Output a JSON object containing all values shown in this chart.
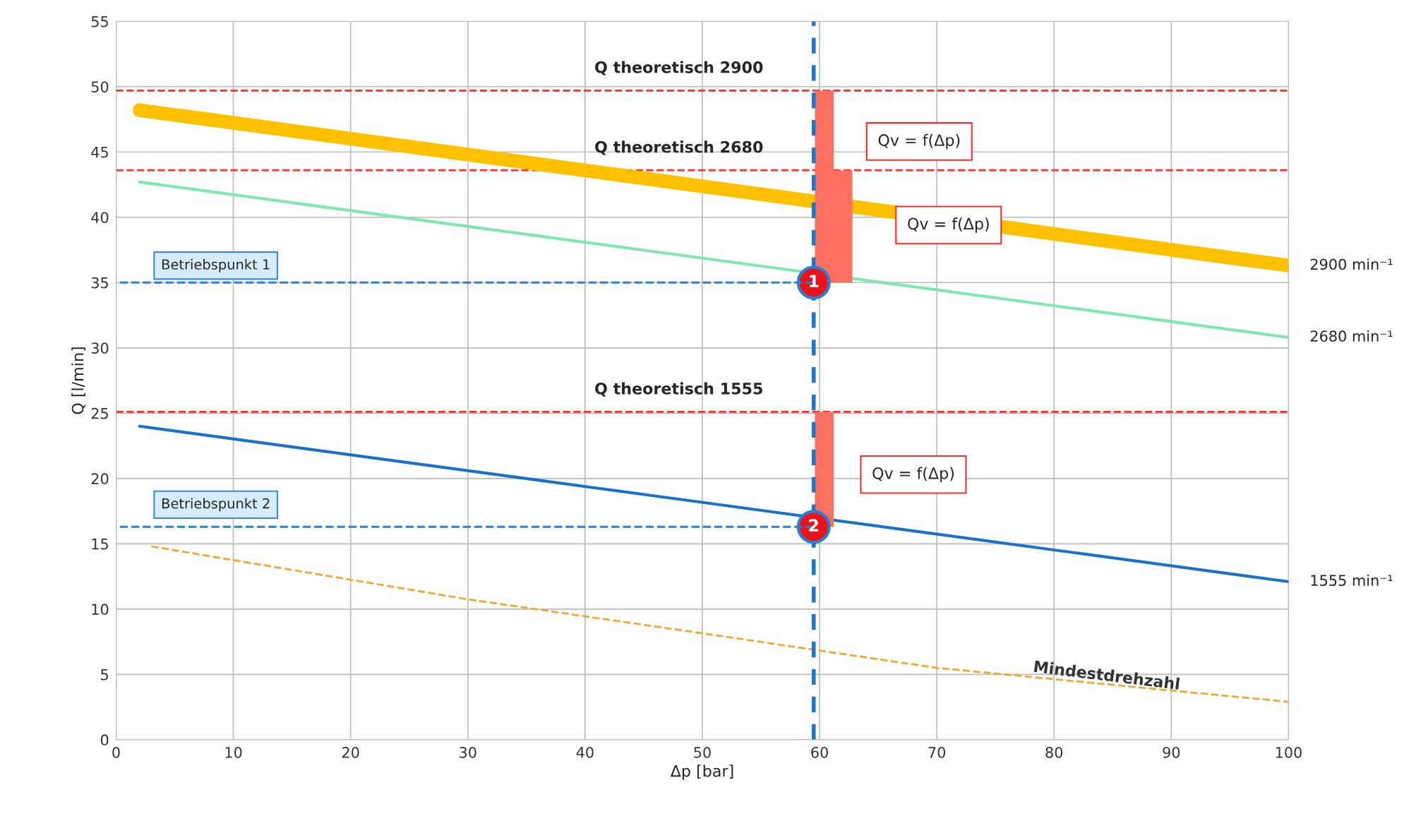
{
  "chart_data": {
    "type": "line",
    "xlabel": "Δp [bar]",
    "ylabel": "Q [l/min]",
    "xlim": [
      0,
      100
    ],
    "xticks": [
      0,
      10,
      20,
      30,
      40,
      50,
      60,
      70,
      80,
      90,
      100
    ],
    "ylim": [
      0,
      55
    ],
    "yticks": [
      0,
      5,
      10,
      15,
      20,
      25,
      30,
      35,
      40,
      45,
      50,
      55
    ],
    "grid": true,
    "legend": false,
    "series": [
      {
        "name": "2900 min⁻¹",
        "color": "#ffc000",
        "x": [
          2,
          100
        ],
        "values": [
          48.2,
          36.3
        ]
      },
      {
        "name": "2680 min⁻¹",
        "color": "#7fe8b0",
        "x": [
          2,
          100
        ],
        "values": [
          42.7,
          30.8
        ]
      },
      {
        "name": "1555 min⁻¹",
        "color": "#1a72c8",
        "x": [
          2,
          100
        ],
        "values": [
          24.0,
          12.1
        ]
      },
      {
        "name": "Mindestdrehzahl",
        "color": "#f0a830",
        "line_style": "dashed",
        "x": [
          3,
          30,
          50,
          70,
          100
        ],
        "values": [
          14.8,
          10.75,
          8.15,
          5.5,
          2.9
        ]
      },
      {
        "color": "#2a7fd0",
        "line_style": "dashed",
        "x": [
          59.5,
          0
        ],
        "values": [
          35,
          35
        ]
      },
      {
        "color": "#2a7fd0",
        "line_style": "dashed",
        "x": [
          59.5,
          0
        ],
        "values": [
          16.3,
          16.3
        ]
      },
      {
        "name": "1",
        "type": "scatter",
        "color": "#e8141b",
        "x": [
          59.5
        ],
        "values": [
          35
        ]
      },
      {
        "name": "2",
        "type": "scatter",
        "color": "#e8141b",
        "x": [
          59.5
        ],
        "values": [
          16.3
        ]
      }
    ],
    "ref_lines": [
      {
        "axis": "y",
        "value": 49.7,
        "label": "Q theoretisch 2900",
        "color": "#ff2a2a",
        "line_style": "dashed"
      },
      {
        "axis": "y",
        "value": 43.6,
        "label": "Q theoretisch 2680",
        "color": "#ff2a2a",
        "line_style": "dashed"
      },
      {
        "axis": "y",
        "value": 25.1,
        "label": "Q theoretisch 1555",
        "color": "#ff2a2a",
        "line_style": "dashed"
      },
      {
        "axis": "x",
        "value": 59.5,
        "color": "#1f77c8",
        "line_style": "dashed"
      }
    ],
    "annotations": [
      "Betriebspunkt 1",
      "Betriebspunkt 2",
      "Qv = f(Δp)",
      "Qv = f(Δp)",
      "Qv = f(Δp)"
    ]
  }
}
